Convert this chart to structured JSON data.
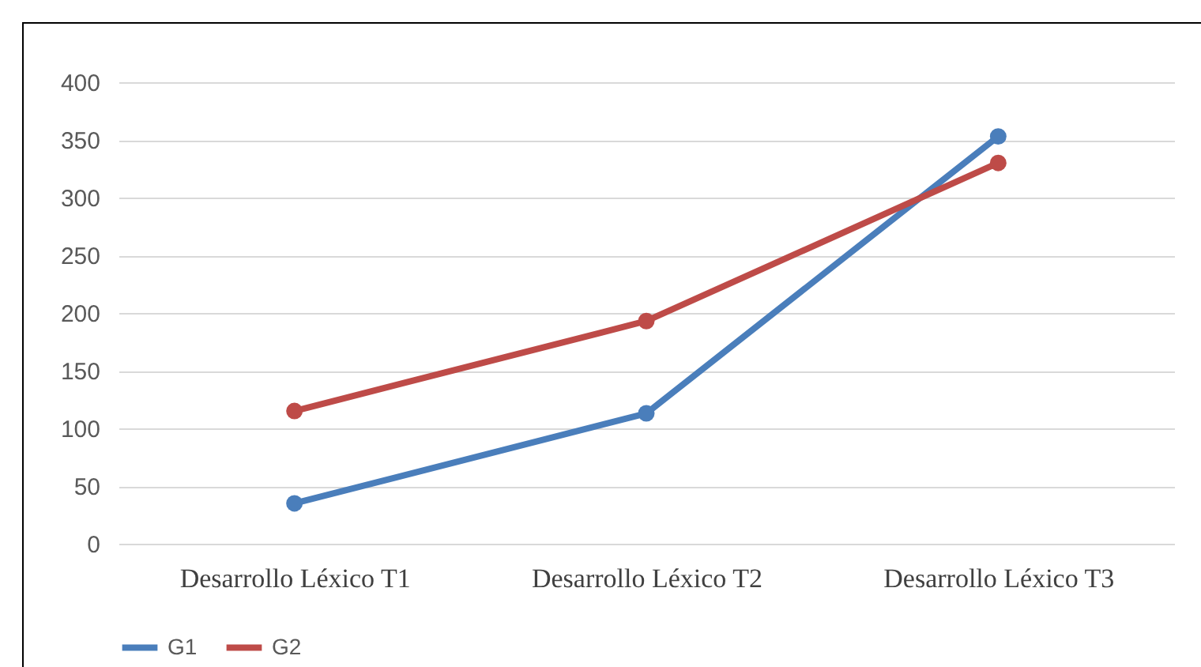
{
  "chart_data": {
    "type": "line",
    "categories": [
      "Desarrollo Léxico T1",
      "Desarrollo Léxico T2",
      "Desarrollo Léxico T3"
    ],
    "series": [
      {
        "name": "G1",
        "color": "#4a7ebb",
        "values": [
          35,
          113,
          353
        ]
      },
      {
        "name": "G2",
        "color": "#be4b48",
        "values": [
          115,
          193,
          330
        ]
      }
    ],
    "ylim": [
      0,
      400
    ],
    "yticks": [
      0,
      50,
      100,
      150,
      200,
      250,
      300,
      350,
      400
    ],
    "grid": "y",
    "legend": "bottom",
    "marker": "circle",
    "line_style": "solid"
  }
}
